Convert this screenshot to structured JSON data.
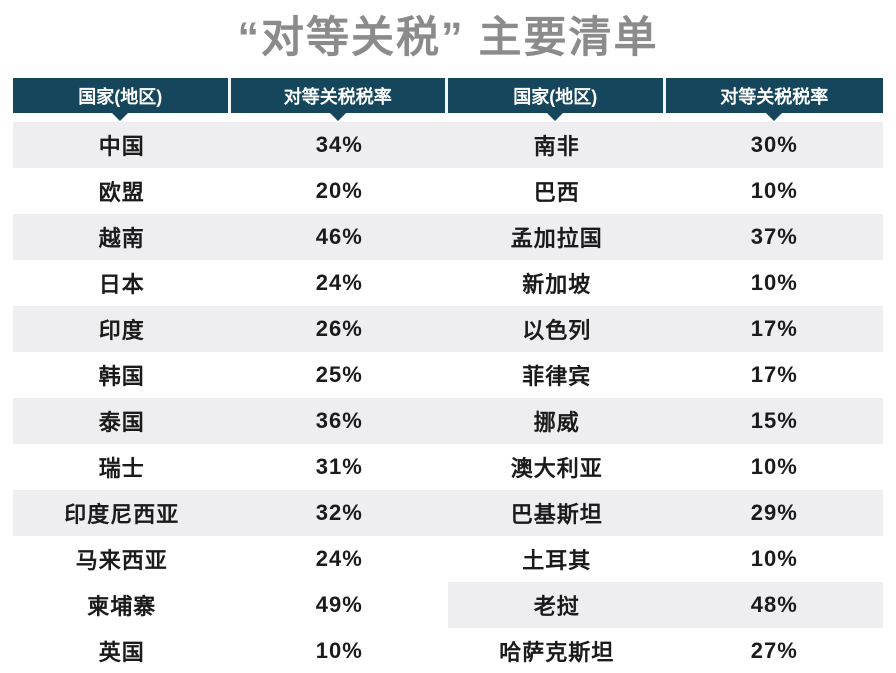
{
  "page": {
    "title": "“对等关税” 主要清单"
  },
  "colors": {
    "header_bg": "#15465b",
    "header_text": "#ffffff",
    "shaded_row": "#eeedef",
    "title_text": "#8b8b8b",
    "body_text": "#1b1b1b",
    "header_divider": "#f2f6f8"
  },
  "table": {
    "headers": [
      "国家(地区)",
      "对等关税税率",
      "国家(地区)",
      "对等关税税率"
    ],
    "rows": [
      {
        "left": {
          "country": "中国",
          "rate": "34%"
        },
        "right": {
          "country": "南非",
          "rate": "30%"
        },
        "left_shaded": true,
        "right_shaded": true
      },
      {
        "left": {
          "country": "欧盟",
          "rate": "20%"
        },
        "right": {
          "country": "巴西",
          "rate": "10%"
        },
        "left_shaded": false,
        "right_shaded": false
      },
      {
        "left": {
          "country": "越南",
          "rate": "46%"
        },
        "right": {
          "country": "孟加拉国",
          "rate": "37%"
        },
        "left_shaded": true,
        "right_shaded": true
      },
      {
        "left": {
          "country": "日本",
          "rate": "24%"
        },
        "right": {
          "country": "新加坡",
          "rate": "10%"
        },
        "left_shaded": false,
        "right_shaded": false
      },
      {
        "left": {
          "country": "印度",
          "rate": "26%"
        },
        "right": {
          "country": "以色列",
          "rate": "17%"
        },
        "left_shaded": true,
        "right_shaded": true
      },
      {
        "left": {
          "country": "韩国",
          "rate": "25%"
        },
        "right": {
          "country": "菲律宾",
          "rate": "17%"
        },
        "left_shaded": false,
        "right_shaded": false
      },
      {
        "left": {
          "country": "泰国",
          "rate": "36%"
        },
        "right": {
          "country": "挪威",
          "rate": "15%"
        },
        "left_shaded": true,
        "right_shaded": true
      },
      {
        "left": {
          "country": "瑞士",
          "rate": "31%"
        },
        "right": {
          "country": "澳大利亚",
          "rate": "10%"
        },
        "left_shaded": false,
        "right_shaded": false
      },
      {
        "left": {
          "country": "印度尼西亚",
          "rate": "32%"
        },
        "right": {
          "country": "巴基斯坦",
          "rate": "29%"
        },
        "left_shaded": true,
        "right_shaded": true
      },
      {
        "left": {
          "country": "马来西亚",
          "rate": "24%"
        },
        "right": {
          "country": "土耳其",
          "rate": "10%"
        },
        "left_shaded": false,
        "right_shaded": false
      },
      {
        "left": {
          "country": "柬埔寨",
          "rate": "49%"
        },
        "right": {
          "country": "老挝",
          "rate": "48%"
        },
        "left_shaded": false,
        "right_shaded": true
      },
      {
        "left": {
          "country": "英国",
          "rate": "10%"
        },
        "right": {
          "country": "哈萨克斯坦",
          "rate": "27%"
        },
        "left_shaded": false,
        "right_shaded": false
      }
    ]
  },
  "chart_data": {
    "type": "table",
    "title": "“对等关税” 主要清单",
    "columns": [
      "国家(地区)",
      "对等关税税率"
    ],
    "entries": [
      {
        "country": "中国",
        "rate_pct": 34
      },
      {
        "country": "欧盟",
        "rate_pct": 20
      },
      {
        "country": "越南",
        "rate_pct": 46
      },
      {
        "country": "日本",
        "rate_pct": 24
      },
      {
        "country": "印度",
        "rate_pct": 26
      },
      {
        "country": "韩国",
        "rate_pct": 25
      },
      {
        "country": "泰国",
        "rate_pct": 36
      },
      {
        "country": "瑞士",
        "rate_pct": 31
      },
      {
        "country": "印度尼西亚",
        "rate_pct": 32
      },
      {
        "country": "马来西亚",
        "rate_pct": 24
      },
      {
        "country": "柬埔寨",
        "rate_pct": 49
      },
      {
        "country": "英国",
        "rate_pct": 10
      },
      {
        "country": "南非",
        "rate_pct": 30
      },
      {
        "country": "巴西",
        "rate_pct": 10
      },
      {
        "country": "孟加拉国",
        "rate_pct": 37
      },
      {
        "country": "新加坡",
        "rate_pct": 10
      },
      {
        "country": "以色列",
        "rate_pct": 17
      },
      {
        "country": "菲律宾",
        "rate_pct": 17
      },
      {
        "country": "挪威",
        "rate_pct": 15
      },
      {
        "country": "澳大利亚",
        "rate_pct": 10
      },
      {
        "country": "巴基斯坦",
        "rate_pct": 29
      },
      {
        "country": "土耳其",
        "rate_pct": 10
      },
      {
        "country": "老挝",
        "rate_pct": 48
      },
      {
        "country": "哈萨克斯坦",
        "rate_pct": 27
      }
    ]
  }
}
